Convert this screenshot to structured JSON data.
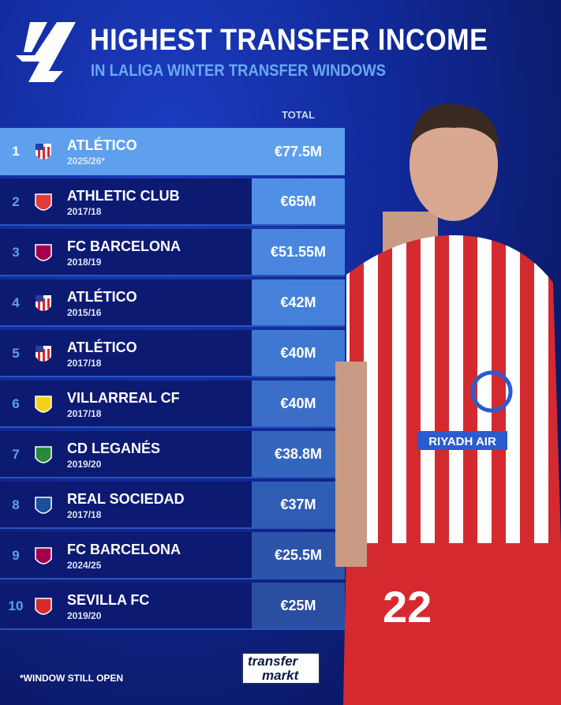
{
  "header": {
    "title": "HIGHEST TRANSFER INCOME",
    "subtitle": "IN LALIGA WINTER TRANSFER WINDOWS",
    "logo": "laliga-logo"
  },
  "table": {
    "column_header": "TOTAL",
    "rows": [
      {
        "rank": "1",
        "club": "ATLÉTICO",
        "season": "2025/26*",
        "total": "€77.5M",
        "crest": "atletico-crest"
      },
      {
        "rank": "2",
        "club": "ATHLETIC CLUB",
        "season": "2017/18",
        "total": "€65M",
        "crest": "athletic-crest"
      },
      {
        "rank": "3",
        "club": "FC BARCELONA",
        "season": "2018/19",
        "total": "€51.55M",
        "crest": "barcelona-crest"
      },
      {
        "rank": "4",
        "club": "ATLÉTICO",
        "season": "2015/16",
        "total": "€42M",
        "crest": "atletico-crest"
      },
      {
        "rank": "5",
        "club": "ATLÉTICO",
        "season": "2017/18",
        "total": "€40M",
        "crest": "atletico-crest"
      },
      {
        "rank": "6",
        "club": "VILLARREAL CF",
        "season": "2017/18",
        "total": "€40M",
        "crest": "villarreal-crest"
      },
      {
        "rank": "7",
        "club": "CD LEGANÉS",
        "season": "2019/20",
        "total": "€38.8M",
        "crest": "leganes-crest"
      },
      {
        "rank": "8",
        "club": "REAL SOCIEDAD",
        "season": "2017/18",
        "total": "€37M",
        "crest": "real-sociedad-crest"
      },
      {
        "rank": "9",
        "club": "FC BARCELONA",
        "season": "2024/25",
        "total": "€25.5M",
        "crest": "barcelona-crest"
      },
      {
        "rank": "10",
        "club": "SEVILLA FC",
        "season": "2019/20",
        "total": "€25M",
        "crest": "sevilla-crest"
      }
    ]
  },
  "footer": {
    "note": "*WINDOW STILL OPEN",
    "brand_line1": "transfer",
    "brand_line2": "markt"
  },
  "player": {
    "shirt_sponsor": "RIYADH AIR",
    "number": "22"
  },
  "colors": {
    "accent": "#5ea0ee",
    "row": "#0d1a72",
    "atletico_red": "#d42a2f"
  }
}
